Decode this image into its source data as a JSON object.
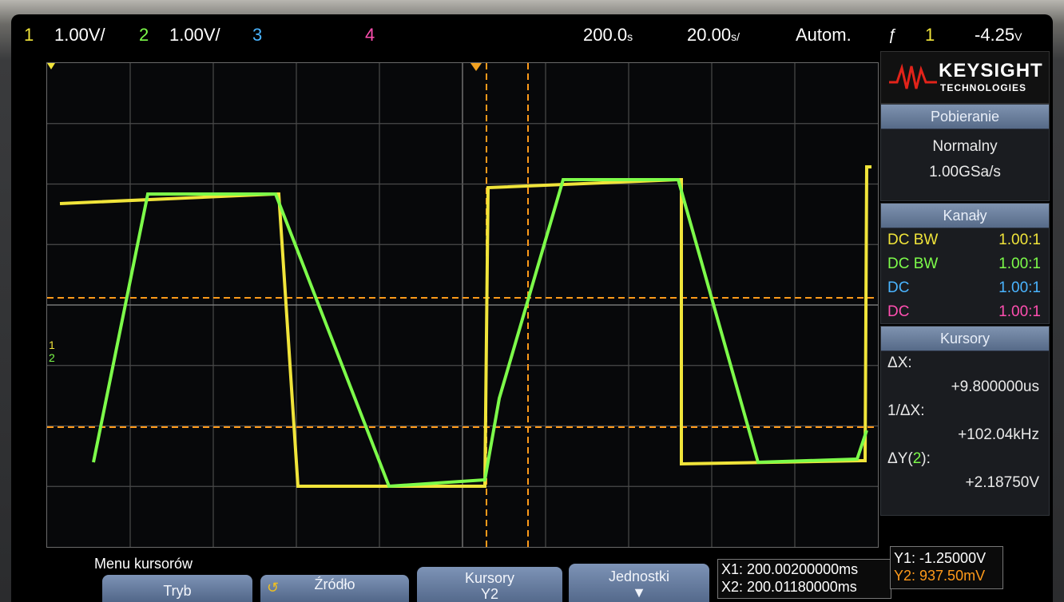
{
  "brand": {
    "name": "KEYSIGHT",
    "subtitle": "TECHNOLOGIES"
  },
  "status": {
    "ch1": {
      "num": "1",
      "scale": "1.00V/"
    },
    "ch2": {
      "num": "2",
      "scale": "1.00V/"
    },
    "ch3": {
      "num": "3"
    },
    "ch4": {
      "num": "4"
    },
    "timebase": "200.0",
    "sample_div": "20.00",
    "trigger_mode": "Autom.",
    "trigger_icon": "trigger-edge-icon",
    "trigger_source": "1",
    "trigger_level": "-4.25"
  },
  "acquisition": {
    "title": "Pobieranie",
    "mode": "Normalny",
    "rate": "1.00GSa/s"
  },
  "channels": {
    "title": "Kanały",
    "rows": [
      {
        "coupling": "DC BW",
        "probe": "1.00:1",
        "color": "#f0e43a"
      },
      {
        "coupling": "DC BW",
        "probe": "1.00:1",
        "color": "#7dfc4a"
      },
      {
        "coupling": "DC",
        "probe": "1.00:1",
        "color": "#4ab4ff"
      },
      {
        "coupling": "DC",
        "probe": "1.00:1",
        "color": "#ff4fb0"
      }
    ]
  },
  "cursors": {
    "title": "Kursory",
    "dx_label": "ΔX:",
    "dx_value": "+9.800000us",
    "inv_label": "1/ΔX:",
    "inv_value": "+102.04kHz",
    "dy_label_pre": "ΔY(",
    "dy_label_ch": "2",
    "dy_label_post": "):",
    "dy_value": "+2.18750V",
    "x1": "X1: 200.00200000ms",
    "x2": "X2: 200.01180000ms",
    "y1": "Y1: -1.25000V",
    "y2": "Y2: 937.50mV"
  },
  "softkeys": {
    "menu_title": "Menu kursorów",
    "mode": "Tryb",
    "source": "Źródło",
    "cursors_label": "Kursory",
    "cursors_value": "Y2",
    "units": "Jednostki"
  },
  "colors": {
    "ch1": "#f0e43a",
    "ch2": "#7dfc4a",
    "ch3": "#4ab4ff",
    "ch4": "#ff4fb0",
    "cursor": "#ff9a1a"
  },
  "waveform": {
    "time_per_div": "200.0 ns",
    "volts_per_div": "1.00 V",
    "ch1_square": {
      "high_v": 1.8,
      "low_v": -1.9
    },
    "ch2_trapezoid": {
      "high_v": 1.8,
      "low_v": -1.9
    }
  }
}
